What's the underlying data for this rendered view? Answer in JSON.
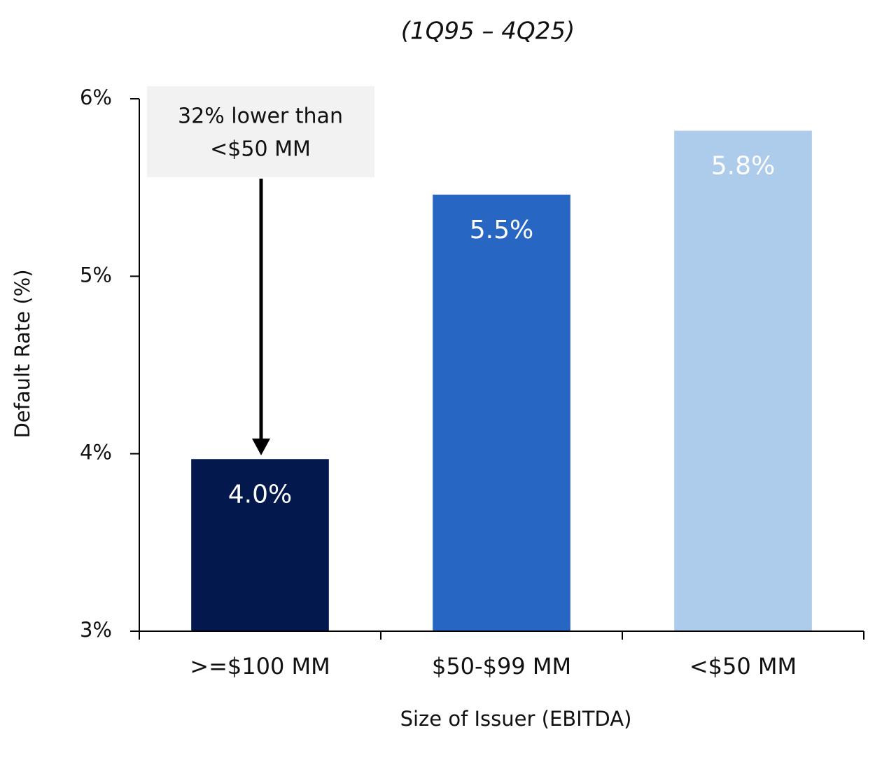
{
  "chart_data": {
    "type": "bar",
    "subtitle": "(1Q95 – 4Q25)",
    "x_label": "Size of Issuer (EBITDA)",
    "y_label": "Default Rate (%)",
    "categories": [
      ">=$100 MM",
      "$50-$99 MM",
      "<$50 MM"
    ],
    "values": [
      3.97,
      5.46,
      5.82
    ],
    "value_labels": [
      "4.0%",
      "5.5%",
      "5.8%"
    ],
    "colors": [
      "#03184d",
      "#2767c3",
      "#adcbeb"
    ],
    "ylim": [
      3,
      6
    ],
    "yticks": [
      {
        "value": 3,
        "label": "3%"
      },
      {
        "value": 4,
        "label": "4%"
      },
      {
        "value": 5,
        "label": "5%"
      },
      {
        "value": 6,
        "label": "6%"
      }
    ],
    "annotation": [
      "32% lower than",
      "<$50 MM"
    ],
    "grid": false
  }
}
